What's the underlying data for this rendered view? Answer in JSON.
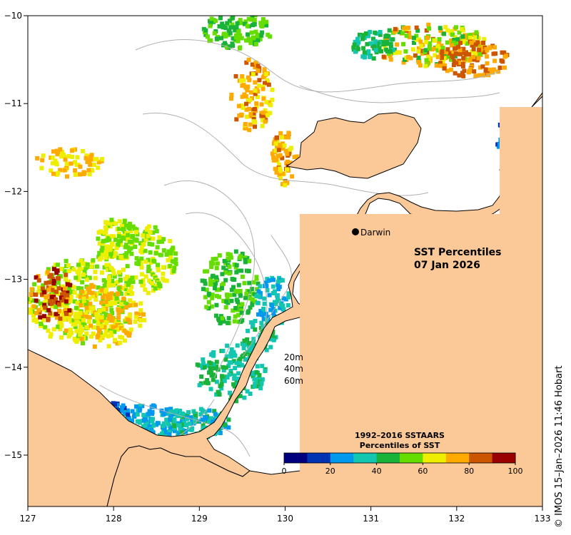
{
  "title": {
    "line1": "SST Percentiles",
    "line2": "07 Jan 2026"
  },
  "place": {
    "name": "Darwin"
  },
  "depth_contours": [
    "20m",
    "40m",
    "60m"
  ],
  "legend": {
    "title_line1": "1992–2016 SSTAARS",
    "title_line2": "Percentiles of SST",
    "colors": [
      "#00007f",
      "#0033b3",
      "#0099ee",
      "#12c6b0",
      "#1ab339",
      "#66dd00",
      "#eeee00",
      "#ffaa00",
      "#cc5500",
      "#990000"
    ],
    "tick_labels": [
      "0",
      "20",
      "40",
      "60",
      "80",
      "100"
    ]
  },
  "axes": {
    "x_ticks": [
      "127",
      "128",
      "129",
      "130",
      "131",
      "132",
      "133"
    ],
    "y_ticks": [
      "−10",
      "−11",
      "−12",
      "−13",
      "−14",
      "−15"
    ],
    "x_range": [
      127,
      133
    ],
    "y_range": [
      -15.6,
      -10
    ]
  },
  "colors": {
    "land": "#fbc897",
    "sea_nodata": "#ffffff",
    "bathymetry": "#b0b0b0",
    "coast": "#000000"
  },
  "credit": "© IMOS 15–Jan–2026 11:46 Hobart"
}
